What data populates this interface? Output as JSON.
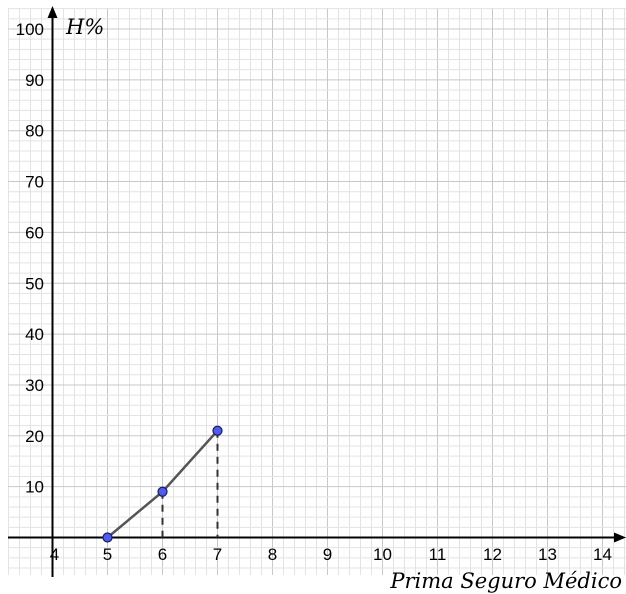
{
  "chart_data": {
    "type": "line",
    "ylabel": "H%",
    "xlabel": "Prima Seguro Médico",
    "xlim": [
      4,
      14
    ],
    "ylim": [
      0,
      100
    ],
    "x_ticks": [
      "4",
      "5",
      "6",
      "7",
      "8",
      "9",
      "10",
      "11",
      "12",
      "13",
      "14"
    ],
    "y_ticks": [
      "10",
      "20",
      "30",
      "40",
      "50",
      "60",
      "70",
      "80",
      "90",
      "100"
    ],
    "grid": true,
    "series": [
      {
        "points": [
          {
            "x": 5,
            "y": 0
          },
          {
            "x": 6,
            "y": 9
          },
          {
            "x": 7,
            "y": 21
          }
        ]
      }
    ],
    "dashed_drops": [
      6,
      7
    ],
    "colors": {
      "point_fill": "#4d5cf2",
      "line": "#555555",
      "grid_minor": "#e3e3e3",
      "grid_major": "#c8c8c8",
      "axis": "#000000"
    }
  }
}
